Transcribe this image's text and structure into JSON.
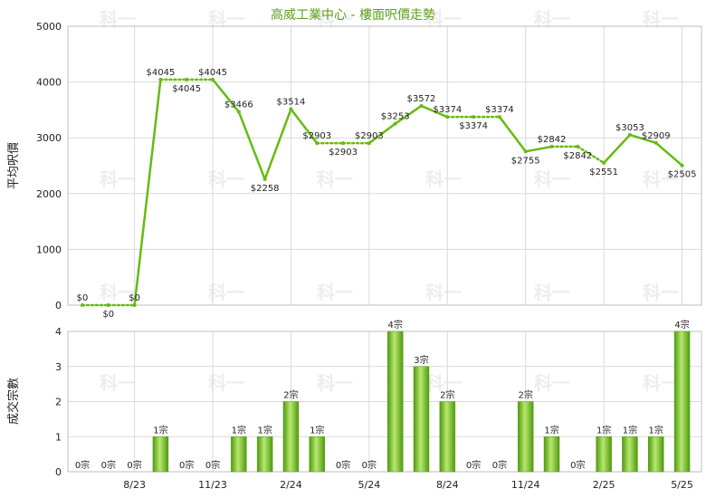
{
  "title": "高威工業中心 - 樓面呎價走勢",
  "chart_data": [
    {
      "type": "line",
      "ylabel": "平均呎價",
      "ylim": [
        0,
        5000
      ],
      "yticks": [
        0,
        1000,
        2000,
        3000,
        4000,
        5000
      ],
      "grid": true,
      "series": [
        {
          "values": [
            0,
            0,
            0,
            4045,
            4045,
            4045,
            3466,
            2258,
            3514,
            2903,
            2903,
            2903,
            3253,
            3572,
            3374,
            3374,
            3374,
            2755,
            2842,
            2842,
            2551,
            3053,
            2909,
            2505
          ]
        }
      ],
      "point_labels": [
        "$0",
        "$0",
        "$0",
        "$4045",
        "$4045",
        "$4045",
        "$3466",
        "$2258",
        "$3514",
        "$2903",
        "$2903",
        "$2903",
        "$3253",
        "$3572",
        "$3374",
        "$3374",
        "$3374",
        "$2755",
        "$2842",
        "$2842",
        "$2551",
        "$3053",
        "$2909",
        "$2505"
      ],
      "interpolated": [
        false,
        true,
        false,
        false,
        true,
        false,
        false,
        false,
        false,
        false,
        true,
        false,
        false,
        false,
        false,
        true,
        false,
        false,
        false,
        true,
        false,
        false,
        false,
        false
      ],
      "line_color": "#66bb11"
    },
    {
      "type": "bar",
      "ylabel": "成交宗數",
      "ylim": [
        0,
        4
      ],
      "yticks": [
        0,
        1,
        2,
        3,
        4
      ],
      "grid": true,
      "x_tick_labels": [
        "8/23",
        "11/23",
        "2/24",
        "5/24",
        "8/24",
        "11/24",
        "2/25",
        "5/25"
      ],
      "values": [
        0,
        0,
        0,
        1,
        0,
        0,
        1,
        1,
        2,
        1,
        0,
        0,
        4,
        3,
        2,
        0,
        0,
        2,
        1,
        0,
        1,
        1,
        1,
        4
      ],
      "bar_labels": [
        "0宗",
        "0宗",
        "0宗",
        "1宗",
        "0宗",
        "0宗",
        "1宗",
        "1宗",
        "2宗",
        "1宗",
        "0宗",
        "0宗",
        "4宗",
        "3宗",
        "2宗",
        "0宗",
        "0宗",
        "2宗",
        "1宗",
        "0宗",
        "1宗",
        "1宗",
        "1宗",
        "4宗"
      ],
      "bar_color": "#7cc42a"
    }
  ],
  "watermark": "科一"
}
